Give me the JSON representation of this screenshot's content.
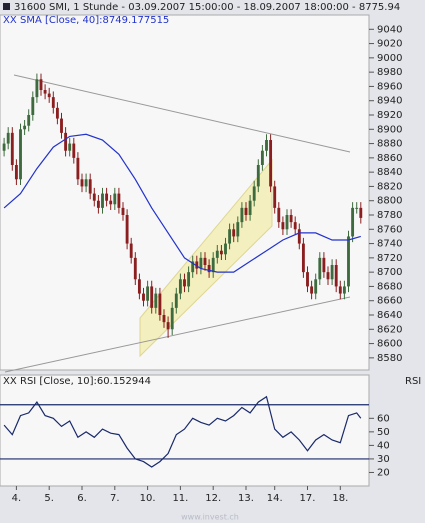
{
  "chart_data": [
    {
      "type": "candlestick",
      "title": "31600  SMI, 1 Stunde - 03.09.2007 15:00:00 - 18.09.2007 18:00:00 - 8775.94",
      "x": [
        0,
        1,
        2,
        3,
        4,
        5,
        6,
        7,
        8,
        9,
        10,
        11,
        12,
        13,
        14,
        15,
        16,
        17,
        18,
        19,
        20,
        21,
        22,
        23,
        24,
        25,
        26,
        27,
        28,
        29,
        30,
        31,
        32,
        33,
        34,
        35,
        36,
        37,
        38,
        39,
        40,
        41,
        42,
        43,
        44,
        45,
        46,
        47,
        48,
        49,
        50,
        51,
        52,
        53,
        54,
        55,
        56,
        57,
        58,
        59,
        60,
        61,
        62,
        63,
        64,
        65,
        66,
        67,
        68,
        69,
        70,
        71,
        72,
        73,
        74,
        75,
        76,
        77,
        78,
        79,
        80,
        81,
        82,
        83,
        84,
        85,
        86,
        87
      ],
      "open": [
        8870,
        8880,
        8895,
        8850,
        8830,
        8900,
        8905,
        8920,
        8945,
        8970,
        8955,
        8950,
        8945,
        8930,
        8915,
        8895,
        8870,
        8880,
        8860,
        8830,
        8820,
        8830,
        8810,
        8800,
        8790,
        8810,
        8800,
        8795,
        8810,
        8790,
        8780,
        8740,
        8720,
        8690,
        8670,
        8660,
        8680,
        8650,
        8670,
        8640,
        8630,
        8620,
        8650,
        8670,
        8690,
        8680,
        8700,
        8715,
        8705,
        8720,
        8710,
        8700,
        8720,
        8730,
        8725,
        8740,
        8760,
        8750,
        8770,
        8790,
        8780,
        8800,
        8820,
        8850,
        8870,
        8885,
        8820,
        8790,
        8770,
        8760,
        8780,
        8770,
        8760,
        8740,
        8700,
        8680,
        8670,
        8690,
        8720,
        8700,
        8690,
        8710,
        8680,
        8670,
        8680,
        8750,
        8790,
        8790
      ],
      "high": [
        8888,
        8903,
        8903,
        8858,
        8908,
        8913,
        8928,
        8953,
        8978,
        8978,
        8963,
        8958,
        8953,
        8938,
        8923,
        8903,
        8888,
        8888,
        8868,
        8838,
        8838,
        8838,
        8818,
        8808,
        8818,
        8818,
        8808,
        8818,
        8818,
        8798,
        8788,
        8748,
        8728,
        8698,
        8678,
        8688,
        8688,
        8678,
        8678,
        8648,
        8638,
        8658,
        8678,
        8698,
        8698,
        8708,
        8723,
        8723,
        8728,
        8728,
        8718,
        8728,
        8738,
        8738,
        8748,
        8768,
        8768,
        8778,
        8798,
        8798,
        8808,
        8828,
        8858,
        8878,
        8893,
        8893,
        8828,
        8798,
        8778,
        8788,
        8788,
        8778,
        8768,
        8748,
        8708,
        8688,
        8698,
        8728,
        8728,
        8708,
        8718,
        8718,
        8688,
        8688,
        8758,
        8798,
        8798,
        8798
      ],
      "low": [
        8862,
        8872,
        8842,
        8822,
        8822,
        8892,
        8897,
        8912,
        8937,
        8947,
        8942,
        8937,
        8922,
        8907,
        8887,
        8862,
        8862,
        8852,
        8822,
        8812,
        8812,
        8802,
        8792,
        8782,
        8782,
        8792,
        8787,
        8787,
        8782,
        8772,
        8732,
        8712,
        8682,
        8662,
        8652,
        8652,
        8642,
        8642,
        8632,
        8622,
        8608,
        8612,
        8642,
        8662,
        8672,
        8672,
        8692,
        8697,
        8697,
        8702,
        8692,
        8692,
        8712,
        8717,
        8717,
        8732,
        8742,
        8742,
        8762,
        8772,
        8772,
        8792,
        8812,
        8842,
        8862,
        8812,
        8782,
        8762,
        8752,
        8752,
        8762,
        8752,
        8732,
        8692,
        8672,
        8662,
        8662,
        8682,
        8692,
        8682,
        8682,
        8672,
        8662,
        8662,
        8672,
        8742,
        8782,
        8768
      ],
      "close": [
        8880,
        8895,
        8850,
        8830,
        8900,
        8905,
        8920,
        8945,
        8970,
        8955,
        8950,
        8945,
        8930,
        8915,
        8895,
        8870,
        8880,
        8860,
        8830,
        8820,
        8830,
        8810,
        8800,
        8790,
        8810,
        8800,
        8795,
        8810,
        8790,
        8780,
        8740,
        8720,
        8690,
        8670,
        8660,
        8680,
        8650,
        8670,
        8640,
        8630,
        8620,
        8650,
        8670,
        8690,
        8680,
        8700,
        8715,
        8705,
        8720,
        8710,
        8700,
        8720,
        8730,
        8725,
        8740,
        8760,
        8750,
        8770,
        8790,
        8780,
        8800,
        8820,
        8850,
        8870,
        8885,
        8820,
        8790,
        8770,
        8760,
        8780,
        8770,
        8760,
        8740,
        8700,
        8680,
        8670,
        8690,
        8720,
        8700,
        8690,
        8710,
        8680,
        8670,
        8680,
        8750,
        8790,
        8790,
        8775.94
      ],
      "up_color": "#3d6b3d",
      "down_color": "#8b1e1e",
      "series": [
        {
          "name": "SMA [Close, 40]:8749.177515",
          "color": "#2233cc",
          "x": [
            0,
            4,
            8,
            12,
            16,
            20,
            24,
            28,
            32,
            36,
            40,
            44,
            48,
            52,
            56,
            60,
            64,
            68,
            72,
            76,
            80,
            84,
            87
          ],
          "values": [
            8790,
            8810,
            8845,
            8875,
            8890,
            8893,
            8885,
            8865,
            8830,
            8790,
            8755,
            8720,
            8705,
            8700,
            8700,
            8715,
            8730,
            8745,
            8755,
            8755,
            8745,
            8745,
            8750
          ]
        }
      ],
      "xlim": [
        -1,
        89
      ],
      "xticks": [
        {
          "value": 3,
          "label": "4."
        },
        {
          "value": 11,
          "label": "5."
        },
        {
          "value": 19,
          "label": "6."
        },
        {
          "value": 27,
          "label": "7."
        },
        {
          "value": 35,
          "label": "10."
        },
        {
          "value": 43,
          "label": "11."
        },
        {
          "value": 51,
          "label": "12."
        },
        {
          "value": 59,
          "label": "13."
        },
        {
          "value": 66,
          "label": "14."
        },
        {
          "value": 74,
          "label": "17."
        },
        {
          "value": 82,
          "label": "18."
        }
      ],
      "ylim": [
        8563,
        9060
      ],
      "yticks": [
        8580,
        8600,
        8620,
        8640,
        8660,
        8680,
        8700,
        8720,
        8740,
        8760,
        8780,
        8800,
        8820,
        8840,
        8860,
        8880,
        8900,
        8920,
        8940,
        8960,
        8980,
        9000,
        9020,
        9040
      ],
      "watermark": "www.invest.ch"
    },
    {
      "type": "line",
      "panel_label": "RSI",
      "series": [
        {
          "name": "RSI [Close, 10]:60.152944",
          "color": "#1a2a6a",
          "x": [
            0,
            2,
            4,
            6,
            8,
            10,
            12,
            14,
            16,
            18,
            20,
            22,
            24,
            26,
            28,
            30,
            32,
            34,
            36,
            38,
            40,
            42,
            44,
            46,
            48,
            50,
            52,
            54,
            56,
            58,
            60,
            62,
            64,
            66,
            68,
            70,
            72,
            74,
            76,
            78,
            80,
            82,
            84,
            86,
            87
          ],
          "values": [
            55,
            48,
            62,
            64,
            72,
            62,
            60,
            54,
            58,
            46,
            50,
            46,
            52,
            49,
            48,
            38,
            30,
            28,
            24,
            28,
            34,
            48,
            52,
            60,
            57,
            55,
            60,
            58,
            62,
            68,
            64,
            72,
            76,
            52,
            46,
            50,
            44,
            36,
            44,
            48,
            44,
            42,
            62,
            64,
            60
          ]
        }
      ],
      "levels": [
        30,
        70
      ],
      "level_color": "#1a2a6a",
      "xlim": [
        -1,
        89
      ],
      "ylim": [
        10,
        92
      ],
      "yticks": [
        20,
        30,
        40,
        50,
        60
      ]
    }
  ]
}
